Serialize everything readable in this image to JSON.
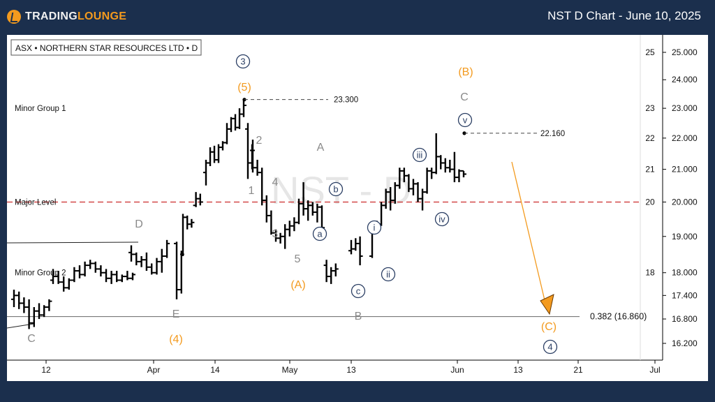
{
  "header": {
    "logo_text_a": "TRADING",
    "logo_text_b": "LOUNGE",
    "title": "NST D Chart - June 10, 2025"
  },
  "colors": {
    "background": "#1b2f4d",
    "orange": "#f39a1e",
    "grey_label": "#8a8a8a",
    "navy_label": "#2a3e63",
    "red_dashed": "#cc2b2b",
    "bar": "#000000"
  },
  "chart_data": {
    "type": "bar",
    "symbol_label": "ASX • NORTHERN STAR RESOURCES LTD • D",
    "watermark": "NST - D",
    "x_ticks": [
      "12",
      "Apr",
      "14",
      "May",
      "13",
      "Jun",
      "13",
      "21",
      "Jul"
    ],
    "y_axis_scale": "log",
    "y_ticks_right": [
      "25.000",
      "24.000",
      "23.000",
      "22.000",
      "21.000",
      "20.000",
      "19.000",
      "18.000",
      "17.400",
      "16.800",
      "16.200"
    ],
    "y_ticks_inner": [
      "25",
      "23",
      "22",
      "21",
      "20",
      "18"
    ],
    "levels": [
      {
        "label": "Minor Group 1",
        "value": 23.0,
        "style": "none"
      },
      {
        "label": "Major Level",
        "value": 20.0,
        "style": "dashed-red"
      },
      {
        "label": "Minor Group 2",
        "value": 18.0,
        "style": "none"
      },
      {
        "label": "0.382 (16.860)",
        "value": 16.86,
        "style": "solid-grey"
      }
    ],
    "price_markers": [
      {
        "label": "23.300",
        "value": 23.3
      },
      {
        "label": "22.160",
        "value": 22.16
      }
    ],
    "wave_labels": [
      {
        "text": "3",
        "style": "circle-navy"
      },
      {
        "text": "(5)",
        "style": "orange"
      },
      {
        "text": "(B)",
        "style": "orange"
      },
      {
        "text": "C",
        "style": "grey"
      },
      {
        "text": "v",
        "style": "circle-navy"
      },
      {
        "text": "2",
        "style": "grey"
      },
      {
        "text": "1",
        "style": "grey"
      },
      {
        "text": "4",
        "style": "grey"
      },
      {
        "text": "3",
        "style": "grey"
      },
      {
        "text": "5",
        "style": "grey"
      },
      {
        "text": "A",
        "style": "grey"
      },
      {
        "text": "b",
        "style": "circle-navy"
      },
      {
        "text": "a",
        "style": "circle-navy"
      },
      {
        "text": "(A)",
        "style": "orange"
      },
      {
        "text": "iii",
        "style": "circle-navy"
      },
      {
        "text": "i",
        "style": "circle-navy"
      },
      {
        "text": "iv",
        "style": "circle-navy"
      },
      {
        "text": "ii",
        "style": "circle-navy"
      },
      {
        "text": "c",
        "style": "circle-navy"
      },
      {
        "text": "B",
        "style": "grey"
      },
      {
        "text": "D",
        "style": "grey"
      },
      {
        "text": "E",
        "style": "grey"
      },
      {
        "text": "(4)",
        "style": "orange"
      },
      {
        "text": "C",
        "style": "grey"
      },
      {
        "text": "(C)",
        "style": "orange"
      },
      {
        "text": "4",
        "style": "circle-navy"
      }
    ],
    "ohlc": [
      {
        "o": 17.3,
        "h": 17.55,
        "l": 17.1,
        "c": 17.4
      },
      {
        "o": 17.4,
        "h": 17.5,
        "l": 17.05,
        "c": 17.2
      },
      {
        "o": 17.2,
        "h": 17.35,
        "l": 16.95,
        "c": 17.1
      },
      {
        "o": 17.1,
        "h": 17.3,
        "l": 16.55,
        "c": 16.7
      },
      {
        "o": 16.7,
        "h": 17.1,
        "l": 16.6,
        "c": 17.0
      },
      {
        "o": 17.0,
        "h": 17.2,
        "l": 16.8,
        "c": 16.9
      },
      {
        "o": 16.9,
        "h": 17.15,
        "l": 16.85,
        "c": 17.1
      },
      {
        "o": 17.1,
        "h": 17.3,
        "l": 17.0,
        "c": 17.25
      },
      {
        "o": 17.8,
        "h": 18.1,
        "l": 17.7,
        "c": 17.9
      },
      {
        "o": 17.9,
        "h": 18.05,
        "l": 17.7,
        "c": 17.75
      },
      {
        "o": 17.75,
        "h": 17.9,
        "l": 17.5,
        "c": 17.6
      },
      {
        "o": 17.6,
        "h": 17.85,
        "l": 17.55,
        "c": 17.8
      },
      {
        "o": 17.8,
        "h": 18.15,
        "l": 17.75,
        "c": 18.05
      },
      {
        "o": 18.05,
        "h": 18.2,
        "l": 17.85,
        "c": 17.95
      },
      {
        "o": 17.95,
        "h": 18.3,
        "l": 17.9,
        "c": 18.2
      },
      {
        "o": 18.2,
        "h": 18.35,
        "l": 18.1,
        "c": 18.25
      },
      {
        "o": 18.25,
        "h": 18.3,
        "l": 18.0,
        "c": 18.1
      },
      {
        "o": 18.1,
        "h": 18.2,
        "l": 17.9,
        "c": 18.0
      },
      {
        "o": 18.0,
        "h": 18.1,
        "l": 17.75,
        "c": 17.85
      },
      {
        "o": 17.85,
        "h": 18.05,
        "l": 17.7,
        "c": 17.95
      },
      {
        "o": 17.95,
        "h": 18.05,
        "l": 17.75,
        "c": 17.8
      },
      {
        "o": 17.8,
        "h": 17.95,
        "l": 17.75,
        "c": 17.9
      },
      {
        "o": 17.9,
        "h": 18.05,
        "l": 17.8,
        "c": 17.85
      },
      {
        "o": 17.85,
        "h": 18.0,
        "l": 17.8,
        "c": 17.95
      },
      {
        "o": 18.55,
        "h": 18.75,
        "l": 18.3,
        "c": 18.5
      },
      {
        "o": 18.5,
        "h": 18.55,
        "l": 18.2,
        "c": 18.3
      },
      {
        "o": 18.3,
        "h": 18.45,
        "l": 18.15,
        "c": 18.35
      },
      {
        "o": 18.35,
        "h": 18.55,
        "l": 18.05,
        "c": 18.15
      },
      {
        "o": 18.15,
        "h": 18.25,
        "l": 17.95,
        "c": 18.0
      },
      {
        "o": 18.0,
        "h": 18.4,
        "l": 17.95,
        "c": 18.3
      },
      {
        "o": 18.3,
        "h": 18.65,
        "l": 18.0,
        "c": 18.45
      },
      {
        "o": 18.45,
        "h": 18.9,
        "l": 18.4,
        "c": 18.8
      },
      {
        "o": 18.8,
        "h": 18.85,
        "l": 17.3,
        "c": 17.55
      },
      {
        "o": 17.55,
        "h": 18.6,
        "l": 17.45,
        "c": 18.5
      },
      {
        "o": 18.5,
        "h": 19.65,
        "l": 18.45,
        "c": 19.55
      },
      {
        "o": 19.55,
        "h": 19.6,
        "l": 19.2,
        "c": 19.35
      },
      {
        "o": 19.35,
        "h": 19.5,
        "l": 19.25,
        "c": 19.4
      },
      {
        "o": 19.9,
        "h": 20.3,
        "l": 19.85,
        "c": 20.1
      },
      {
        "o": 20.1,
        "h": 20.25,
        "l": 19.9,
        "c": 20.0
      },
      {
        "o": 20.9,
        "h": 21.3,
        "l": 20.5,
        "c": 21.2
      },
      {
        "o": 21.2,
        "h": 21.7,
        "l": 21.1,
        "c": 21.55
      },
      {
        "o": 21.55,
        "h": 21.75,
        "l": 21.2,
        "c": 21.3
      },
      {
        "o": 21.3,
        "h": 21.8,
        "l": 21.2,
        "c": 21.7
      },
      {
        "o": 21.7,
        "h": 21.9,
        "l": 21.6,
        "c": 21.85
      },
      {
        "o": 21.85,
        "h": 22.5,
        "l": 21.8,
        "c": 22.3
      },
      {
        "o": 22.3,
        "h": 22.7,
        "l": 22.2,
        "c": 22.65
      },
      {
        "o": 22.65,
        "h": 22.8,
        "l": 22.25,
        "c": 22.35
      },
      {
        "o": 22.35,
        "h": 23.0,
        "l": 22.3,
        "c": 22.8
      },
      {
        "o": 22.8,
        "h": 23.3,
        "l": 22.7,
        "c": 23.1
      },
      {
        "o": 22.3,
        "h": 22.5,
        "l": 20.7,
        "c": 21.2
      },
      {
        "o": 21.2,
        "h": 21.8,
        "l": 21.0,
        "c": 21.6
      },
      {
        "o": 21.6,
        "h": 21.95,
        "l": 20.9,
        "c": 21.05
      },
      {
        "o": 21.05,
        "h": 21.3,
        "l": 20.8,
        "c": 20.9
      },
      {
        "o": 20.9,
        "h": 21.05,
        "l": 19.9,
        "c": 20.05
      },
      {
        "o": 20.05,
        "h": 20.2,
        "l": 19.4,
        "c": 19.6
      },
      {
        "o": 19.6,
        "h": 19.75,
        "l": 19.05,
        "c": 19.1
      },
      {
        "o": 19.1,
        "h": 19.2,
        "l": 18.85,
        "c": 18.95
      },
      {
        "o": 18.95,
        "h": 19.1,
        "l": 18.8,
        "c": 19.0
      },
      {
        "o": 19.0,
        "h": 19.35,
        "l": 18.65,
        "c": 19.2
      },
      {
        "o": 19.2,
        "h": 19.45,
        "l": 19.0,
        "c": 19.3
      },
      {
        "o": 19.3,
        "h": 19.55,
        "l": 19.15,
        "c": 19.4
      },
      {
        "o": 19.4,
        "h": 20.1,
        "l": 19.35,
        "c": 19.95
      },
      {
        "o": 19.95,
        "h": 20.6,
        "l": 19.6,
        "c": 19.8
      },
      {
        "o": 19.8,
        "h": 20.05,
        "l": 19.45,
        "c": 19.9
      },
      {
        "o": 19.9,
        "h": 20.0,
        "l": 19.6,
        "c": 19.7
      },
      {
        "o": 19.7,
        "h": 19.95,
        "l": 19.4,
        "c": 19.85
      },
      {
        "o": 19.85,
        "h": 19.9,
        "l": 19.15,
        "c": 19.25
      },
      {
        "o": 18.2,
        "h": 18.35,
        "l": 17.75,
        "c": 17.9
      },
      {
        "o": 17.9,
        "h": 18.15,
        "l": 17.7,
        "c": 18.05
      },
      {
        "o": 18.05,
        "h": 18.25,
        "l": 17.9,
        "c": 18.1
      },
      {
        "o": 18.6,
        "h": 18.9,
        "l": 18.5,
        "c": 18.65
      },
      {
        "o": 18.65,
        "h": 18.95,
        "l": 18.6,
        "c": 18.8
      },
      {
        "o": 18.8,
        "h": 19.0,
        "l": 18.2,
        "c": 18.45
      },
      {
        "o": 18.45,
        "h": 19.3,
        "l": 18.4,
        "c": 19.25
      },
      {
        "o": 19.25,
        "h": 19.45,
        "l": 19.1,
        "c": 19.35
      },
      {
        "o": 19.35,
        "h": 20.0,
        "l": 19.3,
        "c": 19.9
      },
      {
        "o": 19.9,
        "h": 20.4,
        "l": 19.8,
        "c": 20.3
      },
      {
        "o": 20.3,
        "h": 20.45,
        "l": 19.75,
        "c": 20.05
      },
      {
        "o": 20.05,
        "h": 20.6,
        "l": 19.95,
        "c": 20.5
      },
      {
        "o": 20.5,
        "h": 21.05,
        "l": 20.4,
        "c": 20.95
      },
      {
        "o": 20.95,
        "h": 21.05,
        "l": 20.6,
        "c": 20.8
      },
      {
        "o": 20.8,
        "h": 20.85,
        "l": 20.3,
        "c": 20.4
      },
      {
        "o": 20.4,
        "h": 20.7,
        "l": 20.2,
        "c": 20.55
      },
      {
        "o": 20.55,
        "h": 20.6,
        "l": 20.0,
        "c": 20.1
      },
      {
        "o": 20.1,
        "h": 20.4,
        "l": 19.75,
        "c": 20.3
      },
      {
        "o": 20.3,
        "h": 21.05,
        "l": 20.25,
        "c": 20.95
      },
      {
        "o": 20.95,
        "h": 21.05,
        "l": 20.7,
        "c": 20.9
      },
      {
        "o": 20.9,
        "h": 22.16,
        "l": 20.85,
        "c": 21.4
      },
      {
        "o": 21.4,
        "h": 21.45,
        "l": 21.0,
        "c": 21.2
      },
      {
        "o": 21.2,
        "h": 21.35,
        "l": 20.9,
        "c": 21.05
      },
      {
        "o": 21.05,
        "h": 21.3,
        "l": 20.9,
        "c": 21.0
      },
      {
        "o": 21.0,
        "h": 21.55,
        "l": 20.6,
        "c": 20.75
      },
      {
        "o": 20.75,
        "h": 21.0,
        "l": 20.6,
        "c": 20.95
      },
      {
        "o": 20.95,
        "h": 20.95,
        "l": 20.75,
        "c": 20.85
      }
    ]
  }
}
